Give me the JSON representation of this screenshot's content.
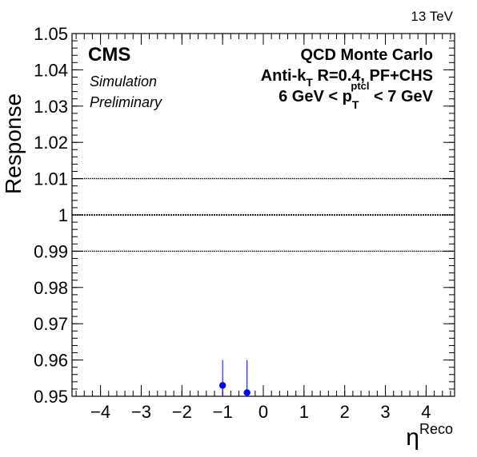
{
  "chart_data": {
    "type": "scatter",
    "experiment": "CMS",
    "energy": "13 TeV",
    "status_lines": [
      "Simulation",
      "Preliminary"
    ],
    "annotation": {
      "sample": "QCD Monte Carlo",
      "algo": {
        "prefix": "Anti-k",
        "sub": "T",
        "suffix": " R=0.4, PF+CHS"
      },
      "range": {
        "prefix": "6 GeV < p",
        "sub": "T",
        "sup": "ptcl",
        "suffix": " < 7 GeV"
      }
    },
    "xlabel": {
      "symbol": "η",
      "sup": "Reco"
    },
    "ylabel": "Response",
    "xlim": [
      -4.7,
      4.7
    ],
    "ylim": [
      0.95,
      1.05
    ],
    "x_ticks": [
      -4,
      -3,
      -2,
      -1,
      0,
      1,
      2,
      3,
      4
    ],
    "x_tick_labels": [
      "−4",
      "−3",
      "−2",
      "−1",
      "0",
      "1",
      "2",
      "3",
      "4"
    ],
    "y_ticks": [
      0.95,
      0.96,
      0.97,
      0.98,
      0.99,
      1.0,
      1.01,
      1.02,
      1.03,
      1.04,
      1.05
    ],
    "y_tick_labels": [
      "0.95",
      "0.96",
      "0.97",
      "0.98",
      "0.99",
      "1",
      "1.01",
      "1.02",
      "1.03",
      "1.04",
      "1.05"
    ],
    "reference_lines": [
      0.99,
      1.0,
      1.01
    ],
    "series": [
      {
        "name": "Response",
        "color": "#0000ff",
        "x": [
          -1.0,
          -0.4
        ],
        "y": [
          0.953,
          0.951
        ],
        "y_err": [
          0.007,
          0.009
        ]
      }
    ]
  }
}
